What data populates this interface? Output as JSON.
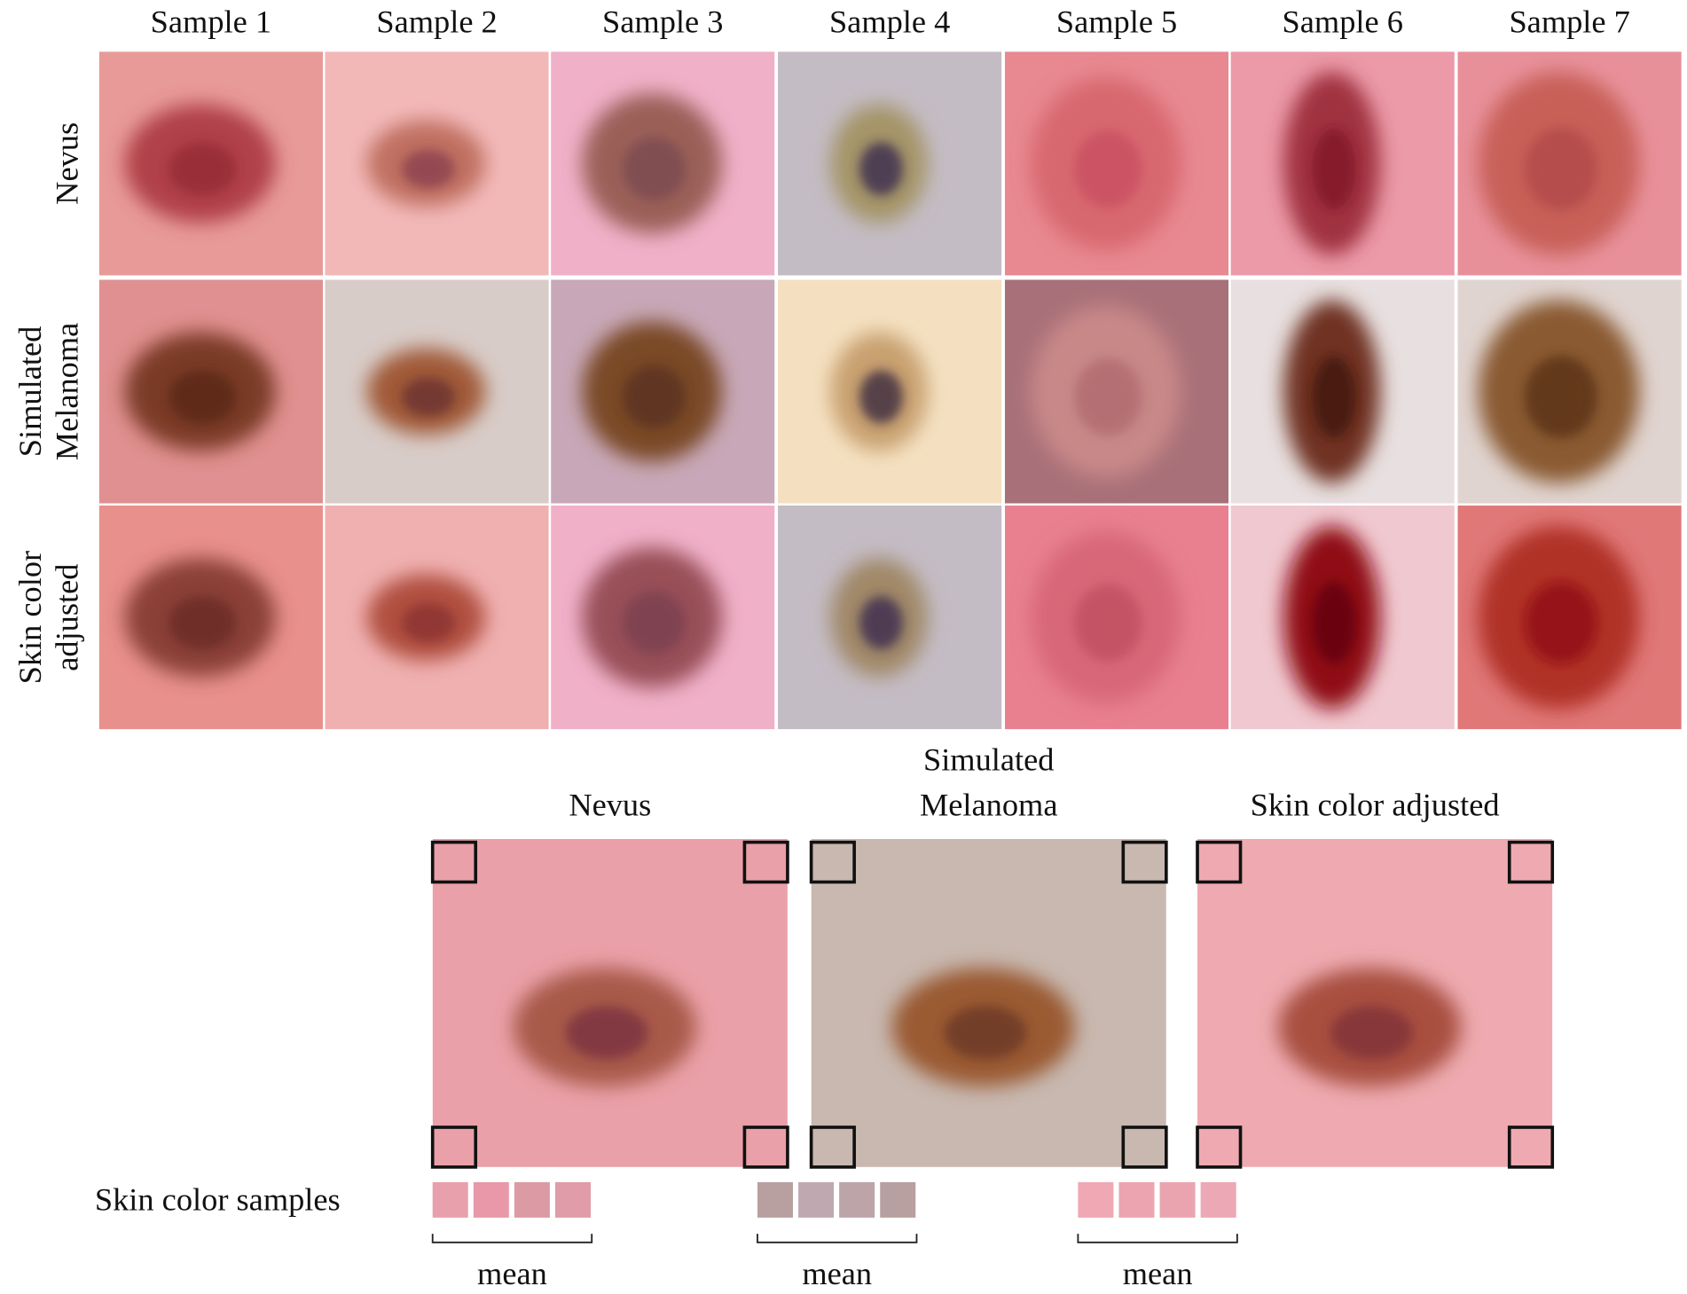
{
  "header": {
    "columns": [
      "Sample 1",
      "Sample 2",
      "Sample 3",
      "Sample 4",
      "Sample 5",
      "Sample 6",
      "Sample 7"
    ]
  },
  "rows": [
    {
      "label": [
        "Nevus"
      ]
    },
    {
      "label": [
        "Simulated",
        "Melanoma"
      ]
    },
    {
      "label": [
        "Skin color",
        "adjusted"
      ]
    }
  ],
  "comparison": {
    "panels": [
      {
        "title": [
          "Nevus"
        ],
        "mean_label": "mean"
      },
      {
        "title": [
          "Simulated",
          "Melanoma"
        ],
        "mean_label": "mean"
      },
      {
        "title": [
          "Skin color adjusted"
        ],
        "mean_label": "mean"
      }
    ],
    "samples_label": "Skin color samples"
  }
}
